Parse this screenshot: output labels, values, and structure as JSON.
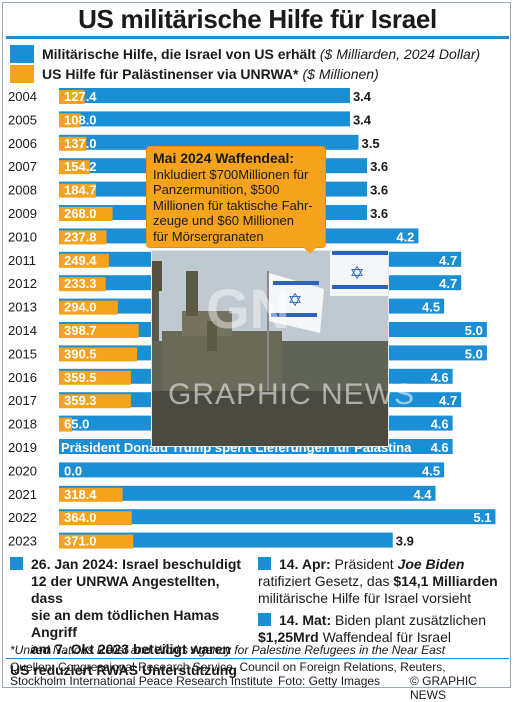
{
  "title": "US militärische Hilfe für Israel",
  "legend": {
    "israel_label": "Militärische Hilfe, die Israel von US erhält",
    "israel_unit": "($ Milliarden, 2024 Dollar)",
    "unrwa_label": "US Hilfe für Palästinenser via UNRWA*",
    "unrwa_unit": "($ Millionen)"
  },
  "colors": {
    "israel": "#1a8fd6",
    "unrwa": "#f5a21d",
    "rule": "#1a8fd6"
  },
  "chart_data": {
    "type": "bar",
    "orientation": "horizontal",
    "categories": [
      "2004",
      "2005",
      "2006",
      "2007",
      "2008",
      "2009",
      "2010",
      "2011",
      "2012",
      "2013",
      "2014",
      "2015",
      "2016",
      "2017",
      "2018",
      "2019",
      "2020",
      "2021",
      "2022",
      "2023"
    ],
    "series": [
      {
        "name": "Militärische Hilfe, die Israel von US erhält ($ Milliarden, 2024 Dollar)",
        "values": [
          3.4,
          3.4,
          3.5,
          3.6,
          3.6,
          3.6,
          4.2,
          4.7,
          4.7,
          4.5,
          5.0,
          5.0,
          4.6,
          4.7,
          4.6,
          4.6,
          4.5,
          4.4,
          5.1,
          3.9
        ],
        "labels": [
          "3.4",
          "3.4",
          "3.5",
          "3.6",
          "3.6",
          "3.6",
          "4.2",
          "4.7",
          "4.7",
          "4.5",
          "5.0",
          "5.0",
          "4.6",
          "4.7",
          "4.6",
          "4.6",
          "4.5",
          "4.4",
          "5.1",
          "3.9"
        ]
      },
      {
        "name": "US Hilfe für Palästinenser via UNRWA* ($ Millionen)",
        "values": [
          127.4,
          108.0,
          137.0,
          154.2,
          184.7,
          268.0,
          237.8,
          249.4,
          233.3,
          294.0,
          398.7,
          390.5,
          359.5,
          359.3,
          65.0,
          0,
          0.0,
          318.4,
          364.0,
          371.0
        ],
        "labels": [
          "127.4",
          "108.0",
          "137.0",
          "154.2",
          "184.7",
          "268.0",
          "237.8",
          "249.4",
          "233.3",
          "294.0",
          "398.7",
          "390.5",
          "359.5",
          "359.3",
          "65.0",
          "",
          "0.0",
          "318.4",
          "364.0",
          "371.0"
        ]
      }
    ],
    "annotations": [
      {
        "year": "2019",
        "text": "Präsident Donald Trump sperrt Lieferungen für Palästina"
      }
    ]
  },
  "callout": {
    "title": "Mai 2024 Waffendeal:",
    "lines": [
      "Inkludiert $700Millionen für",
      "Panzermunition, $500",
      "Millionen für taktische Fahr-",
      "zeuge und $60 Millionen",
      "für Mörsergranaten"
    ]
  },
  "photo_watermark": "GRAPHIC NEWS",
  "photo_mark": "GN",
  "notes": {
    "left": {
      "date": "26. Jan 2024:",
      "text1": "Israel beschuldigt",
      "text2": "12 der UNRWA Angestellten, dass",
      "text3": "sie an dem tödlichen Hamas Angriff",
      "text4": "am 7. Okt 2023 beteiligt waren",
      "text5": "US reduziert RWAS Unterstützung"
    },
    "right1": {
      "date": "14. Apr:",
      "pre": "Präsident",
      "name": "Joe Biden",
      "line2a": "ratifiziert Gesetz, das",
      "line2b": "$14,1 Milliarden",
      "line3": "militärische Hilfe für Israel vorsieht"
    },
    "right2": {
      "date": "14. Mat:",
      "line1": "Biden plant zusätzlichen",
      "amount": "$1,25Mrd",
      "line2": "Waffendeal für Israel"
    }
  },
  "footnote": "*United Nations Relief and Works Agency for Palestine Refugees in the Near East",
  "sources": {
    "line1": "Quellen: Congressional Research Service, Council on Foreign Relations, Reuters,",
    "line2": "Stockholm International Peace Research Institute",
    "photo": "Foto: Getty Images",
    "copyright": "© GRAPHIC NEWS"
  }
}
